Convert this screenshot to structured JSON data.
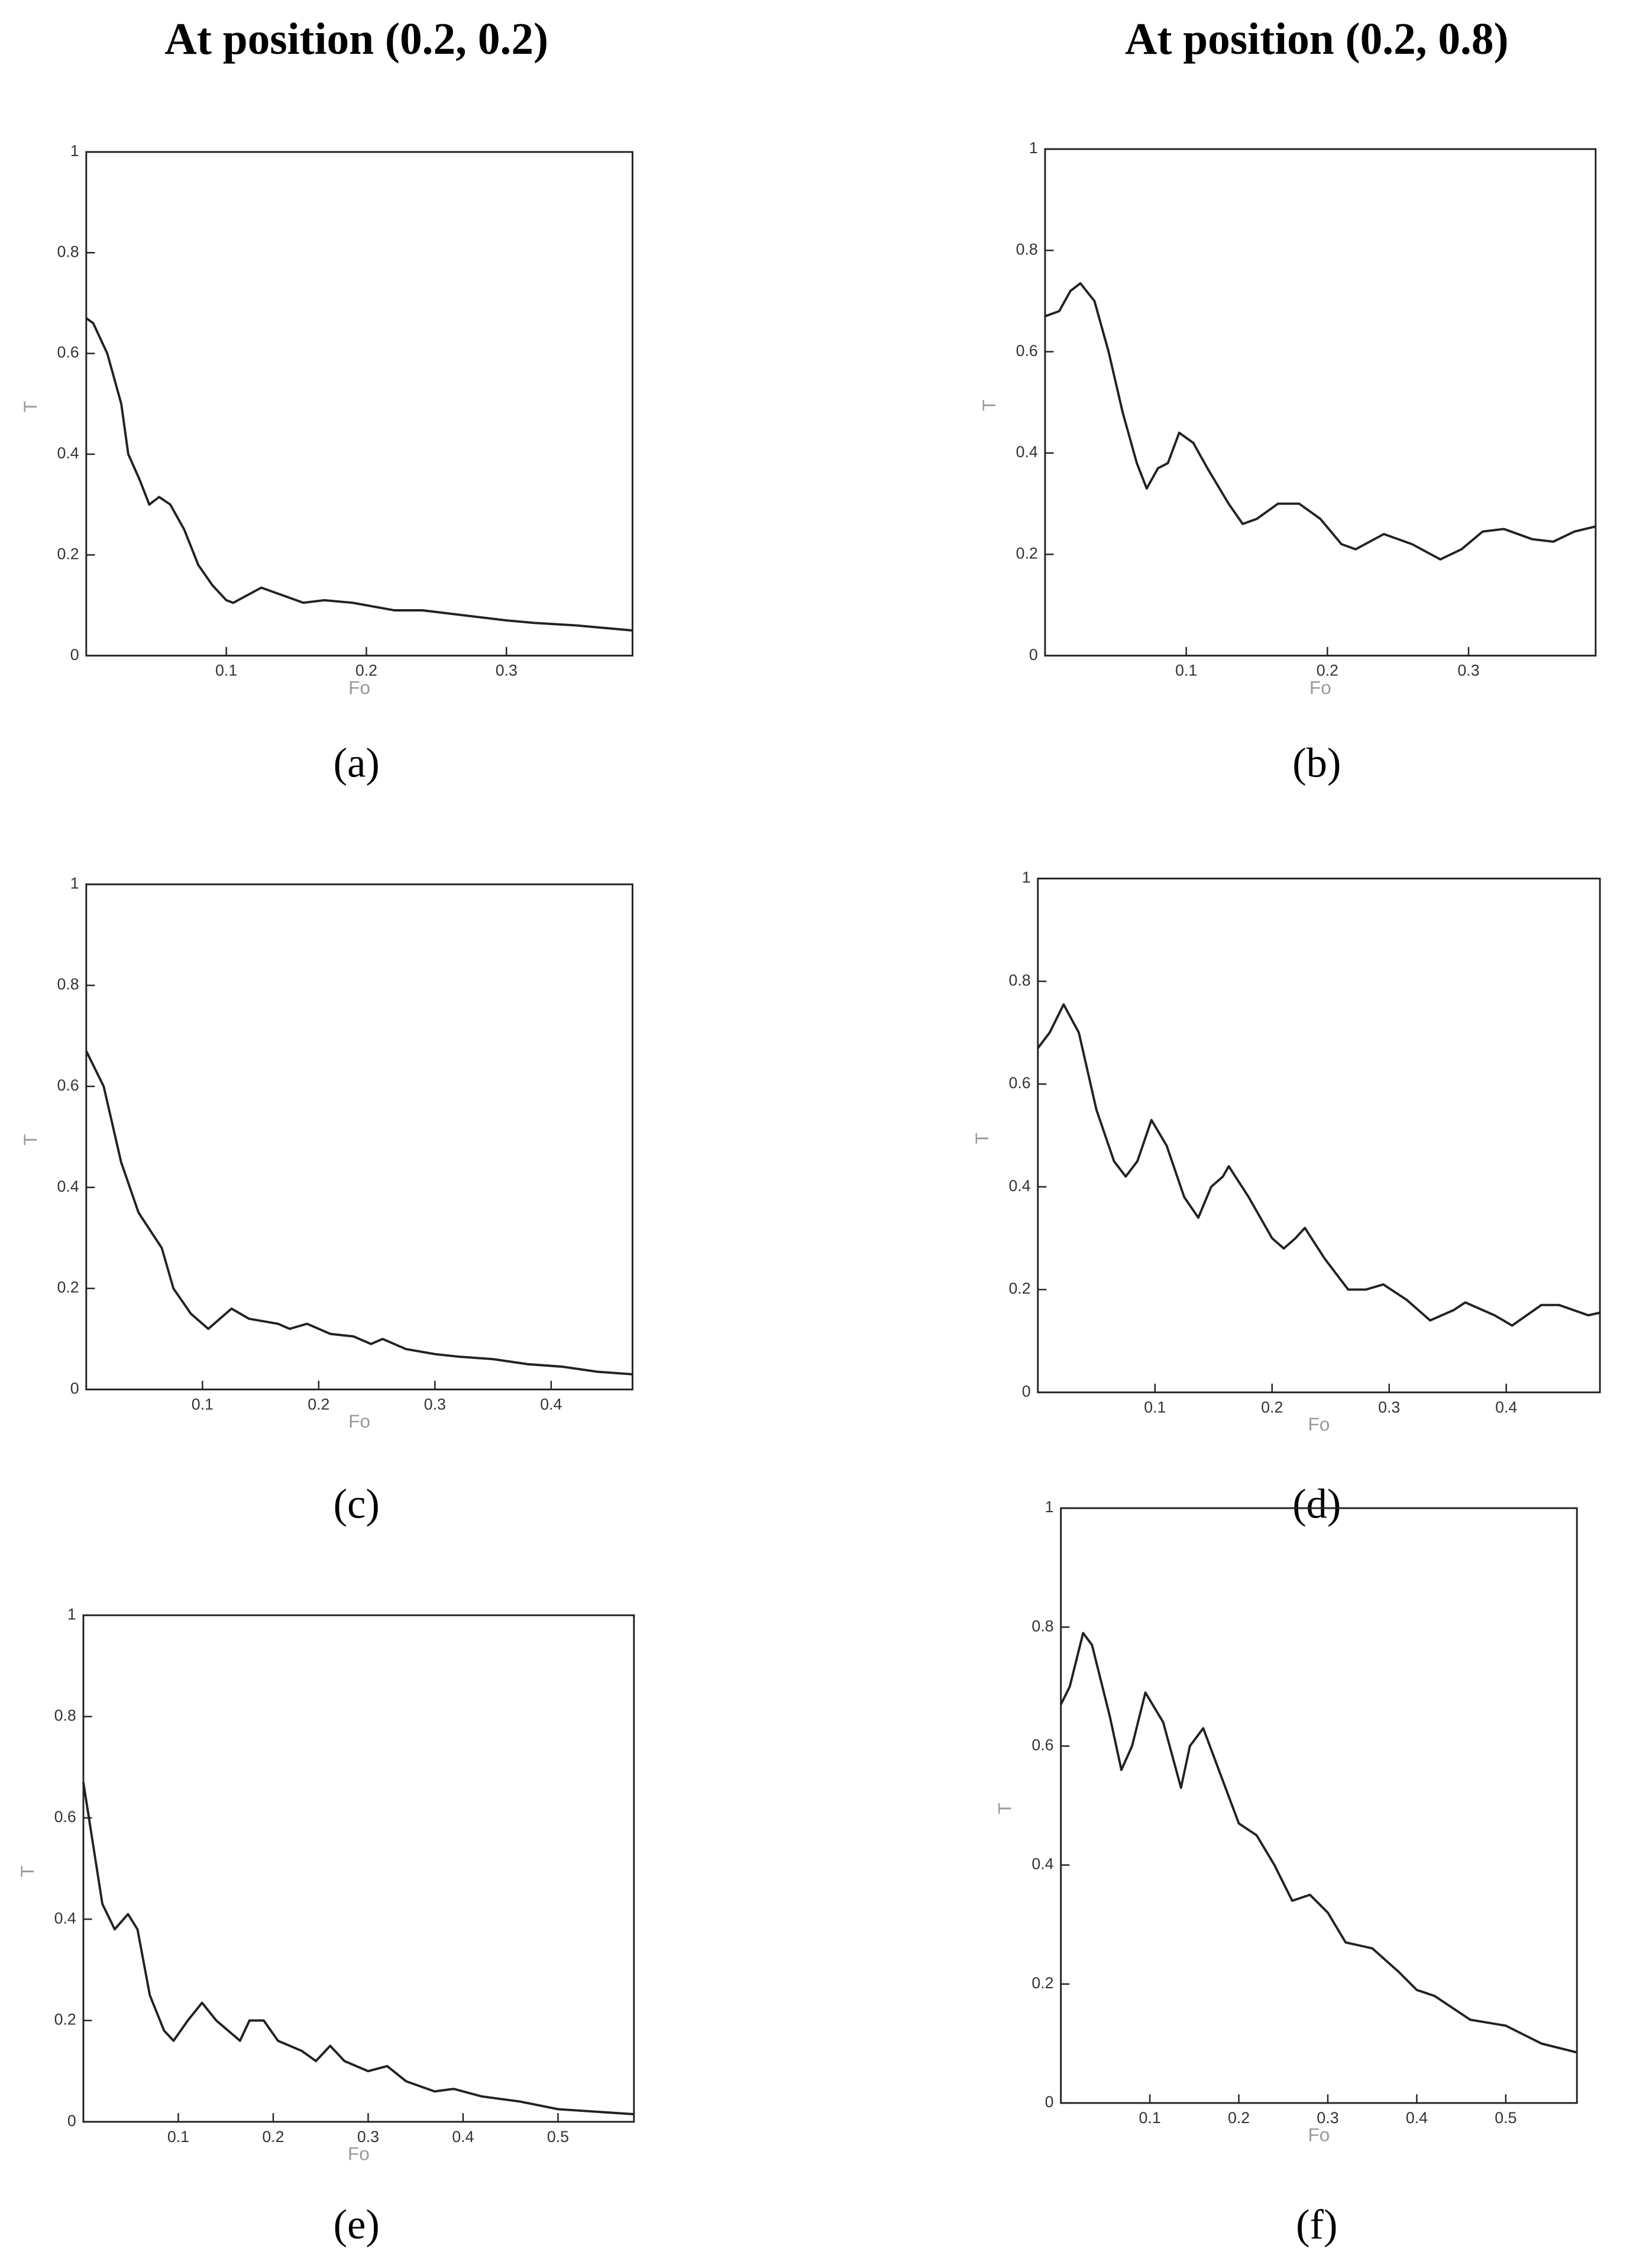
{
  "column_titles": [
    "At position (0.2, 0.2)",
    "At position (0.2, 0.8)"
  ],
  "chart_data": [
    {
      "type": "line",
      "caption": "(a)",
      "xlabel": "Fo",
      "ylabel": "T",
      "color": "#222222",
      "xlim": [
        0,
        0.39
      ],
      "ylim": [
        0,
        1
      ],
      "xticks": [
        0.1,
        0.2,
        0.3
      ],
      "yticks": [
        0,
        0.2,
        0.4,
        0.6,
        0.8,
        1
      ],
      "x": [
        0,
        0.005,
        0.015,
        0.025,
        0.03,
        0.038,
        0.045,
        0.052,
        0.06,
        0.07,
        0.08,
        0.09,
        0.1,
        0.105,
        0.115,
        0.125,
        0.14,
        0.155,
        0.17,
        0.19,
        0.2,
        0.22,
        0.24,
        0.27,
        0.3,
        0.32,
        0.35,
        0.39
      ],
      "values": [
        0.67,
        0.66,
        0.6,
        0.5,
        0.4,
        0.35,
        0.3,
        0.315,
        0.3,
        0.25,
        0.18,
        0.14,
        0.11,
        0.105,
        0.12,
        0.135,
        0.12,
        0.105,
        0.11,
        0.105,
        0.1,
        0.09,
        0.09,
        0.08,
        0.07,
        0.065,
        0.06,
        0.05
      ]
    },
    {
      "type": "line",
      "caption": "(b)",
      "xlabel": "Fo",
      "ylabel": "T",
      "color": "#222222",
      "xlim": [
        0,
        0.39
      ],
      "ylim": [
        0,
        1
      ],
      "xticks": [
        0.1,
        0.2,
        0.3
      ],
      "yticks": [
        0,
        0.2,
        0.4,
        0.6,
        0.8,
        1
      ],
      "x": [
        0,
        0.01,
        0.018,
        0.025,
        0.035,
        0.045,
        0.055,
        0.065,
        0.072,
        0.08,
        0.087,
        0.095,
        0.105,
        0.115,
        0.13,
        0.14,
        0.15,
        0.165,
        0.18,
        0.195,
        0.21,
        0.22,
        0.24,
        0.26,
        0.28,
        0.295,
        0.31,
        0.325,
        0.345,
        0.36,
        0.375,
        0.39
      ],
      "values": [
        0.67,
        0.68,
        0.72,
        0.735,
        0.7,
        0.6,
        0.48,
        0.38,
        0.33,
        0.37,
        0.38,
        0.44,
        0.42,
        0.37,
        0.3,
        0.26,
        0.27,
        0.3,
        0.3,
        0.27,
        0.22,
        0.21,
        0.24,
        0.22,
        0.19,
        0.21,
        0.245,
        0.25,
        0.23,
        0.225,
        0.245,
        0.255
      ]
    },
    {
      "type": "line",
      "caption": "(c)",
      "xlabel": "Fo",
      "ylabel": "T",
      "color": "#222222",
      "xlim": [
        0,
        0.47
      ],
      "ylim": [
        0,
        1
      ],
      "xticks": [
        0.1,
        0.2,
        0.3,
        0.4
      ],
      "yticks": [
        0,
        0.2,
        0.4,
        0.6,
        0.8,
        1
      ],
      "x": [
        0,
        0.015,
        0.03,
        0.045,
        0.055,
        0.065,
        0.075,
        0.09,
        0.105,
        0.115,
        0.125,
        0.14,
        0.165,
        0.175,
        0.19,
        0.21,
        0.23,
        0.245,
        0.255,
        0.275,
        0.3,
        0.32,
        0.35,
        0.38,
        0.41,
        0.44,
        0.47
      ],
      "values": [
        0.67,
        0.6,
        0.45,
        0.35,
        0.315,
        0.28,
        0.2,
        0.15,
        0.12,
        0.14,
        0.16,
        0.14,
        0.13,
        0.12,
        0.13,
        0.11,
        0.105,
        0.09,
        0.1,
        0.08,
        0.07,
        0.065,
        0.06,
        0.05,
        0.045,
        0.035,
        0.03
      ]
    },
    {
      "type": "line",
      "caption": "(d)",
      "xlabel": "Fo",
      "ylabel": "T",
      "color": "#222222",
      "xlim": [
        0,
        0.48
      ],
      "ylim": [
        0,
        1
      ],
      "xticks": [
        0.1,
        0.2,
        0.3,
        0.4
      ],
      "yticks": [
        0,
        0.2,
        0.4,
        0.6,
        0.8,
        1
      ],
      "x": [
        0,
        0.01,
        0.022,
        0.035,
        0.05,
        0.065,
        0.075,
        0.085,
        0.097,
        0.11,
        0.125,
        0.137,
        0.148,
        0.158,
        0.163,
        0.18,
        0.2,
        0.21,
        0.22,
        0.228,
        0.245,
        0.265,
        0.28,
        0.295,
        0.315,
        0.335,
        0.355,
        0.365,
        0.39,
        0.405,
        0.43,
        0.445,
        0.47,
        0.48
      ],
      "values": [
        0.67,
        0.7,
        0.755,
        0.7,
        0.55,
        0.45,
        0.42,
        0.45,
        0.53,
        0.48,
        0.38,
        0.34,
        0.4,
        0.42,
        0.44,
        0.38,
        0.3,
        0.28,
        0.3,
        0.32,
        0.26,
        0.2,
        0.2,
        0.21,
        0.18,
        0.14,
        0.16,
        0.175,
        0.15,
        0.13,
        0.17,
        0.17,
        0.15,
        0.155
      ]
    },
    {
      "type": "line",
      "caption": "(e)",
      "xlabel": "Fo",
      "ylabel": "T",
      "color": "#222222",
      "xlim": [
        0,
        0.58
      ],
      "ylim": [
        0,
        1
      ],
      "xticks": [
        0.1,
        0.2,
        0.3,
        0.4,
        0.5
      ],
      "yticks": [
        0,
        0.2,
        0.4,
        0.6,
        0.8,
        1
      ],
      "x": [
        0,
        0.01,
        0.02,
        0.033,
        0.047,
        0.057,
        0.07,
        0.085,
        0.095,
        0.11,
        0.125,
        0.14,
        0.165,
        0.175,
        0.19,
        0.205,
        0.23,
        0.245,
        0.26,
        0.275,
        0.3,
        0.32,
        0.34,
        0.37,
        0.39,
        0.42,
        0.46,
        0.5,
        0.54,
        0.58
      ],
      "values": [
        0.67,
        0.55,
        0.43,
        0.38,
        0.41,
        0.38,
        0.25,
        0.18,
        0.16,
        0.2,
        0.235,
        0.2,
        0.16,
        0.2,
        0.2,
        0.16,
        0.14,
        0.12,
        0.15,
        0.12,
        0.1,
        0.11,
        0.08,
        0.06,
        0.065,
        0.05,
        0.04,
        0.025,
        0.02,
        0.015
      ]
    },
    {
      "type": "line",
      "caption": "(f)",
      "xlabel": "Fo",
      "ylabel": "T",
      "color": "#222222",
      "xlim": [
        0,
        0.58
      ],
      "ylim": [
        0,
        1
      ],
      "xticks": [
        0.1,
        0.2,
        0.3,
        0.4,
        0.5
      ],
      "yticks": [
        0,
        0.2,
        0.4,
        0.6,
        0.8,
        1
      ],
      "x": [
        0,
        0.01,
        0.025,
        0.035,
        0.055,
        0.068,
        0.08,
        0.095,
        0.115,
        0.135,
        0.145,
        0.16,
        0.18,
        0.2,
        0.22,
        0.24,
        0.26,
        0.28,
        0.3,
        0.32,
        0.35,
        0.38,
        0.4,
        0.42,
        0.46,
        0.5,
        0.54,
        0.58
      ],
      "values": [
        0.67,
        0.7,
        0.79,
        0.77,
        0.65,
        0.56,
        0.6,
        0.69,
        0.64,
        0.53,
        0.6,
        0.63,
        0.55,
        0.47,
        0.45,
        0.4,
        0.34,
        0.35,
        0.32,
        0.27,
        0.26,
        0.22,
        0.19,
        0.18,
        0.14,
        0.13,
        0.1,
        0.085
      ]
    }
  ]
}
